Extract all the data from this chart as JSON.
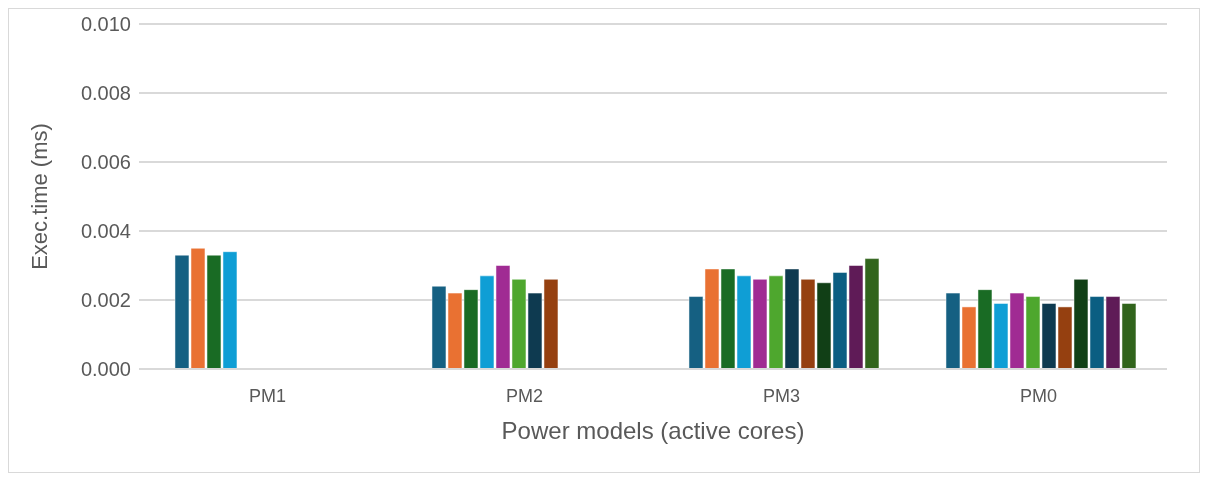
{
  "chart_data": {
    "type": "bar",
    "xlabel": "Power models (active cores)",
    "ylabel": "Exec.time (ms)",
    "categories": [
      "PM1",
      "PM2",
      "PM3",
      "PM0"
    ],
    "series": [
      {
        "color": "#156082",
        "values": [
          0.0033,
          0.0024,
          0.0021,
          0.0022
        ]
      },
      {
        "color": "#e97132",
        "values": [
          0.0035,
          0.0022,
          0.0029,
          0.0018
        ]
      },
      {
        "color": "#196b24",
        "values": [
          0.0033,
          0.0023,
          0.0029,
          0.0023
        ]
      },
      {
        "color": "#0f9ed5",
        "values": [
          0.0034,
          0.0027,
          0.0027,
          0.0019
        ]
      },
      {
        "color": "#a02b93",
        "values": [
          null,
          0.003,
          0.0026,
          0.0022
        ]
      },
      {
        "color": "#4ea72e",
        "values": [
          null,
          0.0026,
          0.0027,
          0.0021
        ]
      },
      {
        "color": "#0e3a50",
        "values": [
          null,
          0.0022,
          0.0029,
          0.0019
        ]
      },
      {
        "color": "#954010",
        "values": [
          null,
          0.0026,
          0.0026,
          0.0018
        ]
      },
      {
        "color": "#113f16",
        "values": [
          null,
          null,
          0.0025,
          0.0026
        ]
      },
      {
        "color": "#0b5e82",
        "values": [
          null,
          null,
          0.0028,
          0.0021
        ]
      },
      {
        "color": "#5f1b57",
        "values": [
          null,
          null,
          0.003,
          0.0021
        ]
      },
      {
        "color": "#31641c",
        "values": [
          null,
          null,
          0.0032,
          0.0019
        ]
      }
    ],
    "ylim": [
      0,
      0.01
    ],
    "yticks": [
      {
        "value": 0,
        "label": "0.000"
      },
      {
        "value": 0.002,
        "label": "0.002"
      },
      {
        "value": 0.004,
        "label": "0.004"
      },
      {
        "value": 0.006,
        "label": "0.006"
      },
      {
        "value": 0.008,
        "label": "0.008"
      },
      {
        "value": 0.01,
        "label": "0.010"
      }
    ],
    "grid": "y"
  }
}
